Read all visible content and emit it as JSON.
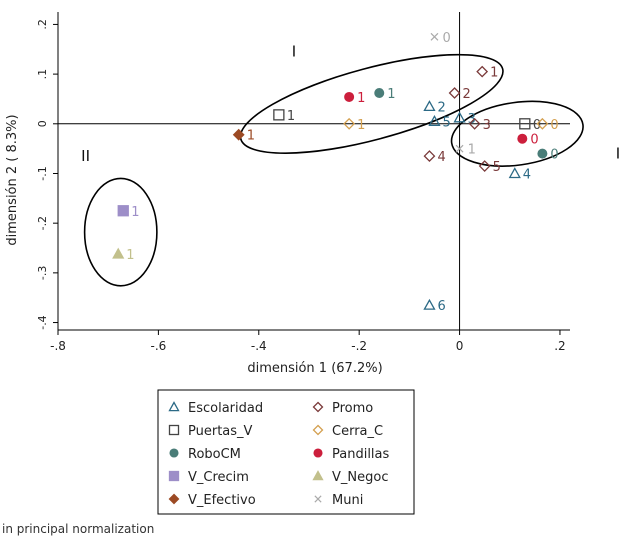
{
  "chart_data": {
    "type": "scatter",
    "xlabel": "dimensión 1 (67.2%)",
    "ylabel": "dimensión 2 ( 8.3%)",
    "xlim": [
      -0.8,
      0.22
    ],
    "ylim": [
      -0.415,
      0.225
    ],
    "x_ticks": [
      "-.8",
      "-.6",
      "-.4",
      "-.2",
      "0",
      ".2"
    ],
    "y_ticks": [
      ".2",
      ".1",
      "0",
      "-.1",
      "-.2",
      "-.3",
      "-.4"
    ],
    "grid": false,
    "reference_lines": {
      "x": 0,
      "y": 0
    },
    "legend_position": "bottom",
    "series": [
      {
        "name": "Escolaridad",
        "marker": "triangle-open",
        "color": "#2c6a86",
        "points": [
          {
            "x": -0.06,
            "y": 0.035,
            "label": "2"
          },
          {
            "x": -0.05,
            "y": 0.005,
            "label": "5"
          },
          {
            "x": 0.0,
            "y": 0.012,
            "label": "3"
          },
          {
            "x": 0.11,
            "y": -0.1,
            "label": "4"
          },
          {
            "x": -0.06,
            "y": -0.365,
            "label": "6"
          }
        ]
      },
      {
        "name": "Promo",
        "marker": "diamond-open",
        "color": "#7a3a3a",
        "points": [
          {
            "x": 0.045,
            "y": 0.105,
            "label": "1"
          },
          {
            "x": -0.01,
            "y": 0.062,
            "label": "2"
          },
          {
            "x": 0.03,
            "y": 0.0,
            "label": "3"
          },
          {
            "x": -0.06,
            "y": -0.065,
            "label": "4"
          },
          {
            "x": 0.05,
            "y": -0.085,
            "label": "5"
          }
        ]
      },
      {
        "name": "Puertas_V",
        "marker": "square-open",
        "color": "#444444",
        "points": [
          {
            "x": -0.36,
            "y": 0.018,
            "label": "1"
          },
          {
            "x": 0.13,
            "y": 0.0,
            "label": "0"
          }
        ]
      },
      {
        "name": "Cerra_C",
        "marker": "diamond-open",
        "color": "#d4a050",
        "points": [
          {
            "x": -0.22,
            "y": 0.0,
            "label": "1"
          },
          {
            "x": 0.165,
            "y": 0.0,
            "label": "0"
          }
        ]
      },
      {
        "name": "RoboCM",
        "marker": "circle",
        "color": "#4a7d78",
        "points": [
          {
            "x": -0.16,
            "y": 0.062,
            "label": "1"
          },
          {
            "x": 0.165,
            "y": -0.06,
            "label": "0"
          }
        ]
      },
      {
        "name": "Pandillas",
        "marker": "circle",
        "color": "#cc1f3c",
        "points": [
          {
            "x": -0.22,
            "y": 0.054,
            "label": "1"
          },
          {
            "x": 0.125,
            "y": -0.03,
            "label": "0"
          }
        ]
      },
      {
        "name": "V_Crecim",
        "marker": "square",
        "color": "#9d8ec8",
        "points": [
          {
            "x": -0.67,
            "y": -0.175,
            "label": "1"
          }
        ]
      },
      {
        "name": "V_Negoc",
        "marker": "triangle",
        "color": "#c2c08c",
        "points": [
          {
            "x": -0.68,
            "y": -0.262,
            "label": "1"
          }
        ]
      },
      {
        "name": "V_Efectivo",
        "marker": "diamond",
        "color": "#9c4a24",
        "points": [
          {
            "x": -0.44,
            "y": -0.022,
            "label": "1"
          }
        ]
      },
      {
        "name": "Muni",
        "marker": "x",
        "color": "#aaaaaa",
        "points": [
          {
            "x": -0.05,
            "y": 0.175,
            "label": "0"
          },
          {
            "x": 0.0,
            "y": -0.05,
            "label": "1"
          }
        ]
      }
    ],
    "annotations": [
      {
        "text": "I",
        "x": -0.33,
        "y": 0.135
      },
      {
        "text": "II",
        "x": -0.745,
        "y": -0.075
      },
      {
        "text": "II",
        "x": 0.32,
        "y": -0.07
      }
    ],
    "ellipses": [
      {
        "cx": -0.175,
        "cy": 0.04,
        "rx": 0.27,
        "ry": 0.072,
        "angle": -15
      },
      {
        "cx": 0.115,
        "cy": -0.02,
        "rx": 0.132,
        "ry": 0.063,
        "angle": -8
      },
      {
        "cx": -0.675,
        "cy": -0.218,
        "rx": 0.072,
        "ry": 0.108,
        "angle": 0
      }
    ],
    "footnote": "in principal normalization"
  }
}
